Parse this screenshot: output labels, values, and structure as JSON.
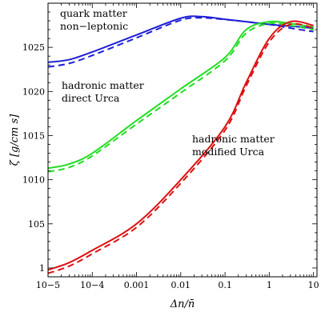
{
  "chart_data": {
    "type": "line",
    "title": "",
    "xlabel": "Δn/n̄",
    "ylabel": "ζ [g/cm s]",
    "xscale": "log",
    "yscale": "log",
    "xlim": [
      1e-05,
      12
    ],
    "ylim": [
      0.1,
      1e+30
    ],
    "grid": false,
    "x_tick_labels": [
      "10−5",
      "10−4",
      "0.001",
      "0.01",
      "0.1",
      "1",
      "10"
    ],
    "y_tick_labels": [
      "1",
      "105",
      "1010",
      "1015",
      "1020",
      "1025"
    ],
    "annotations": [
      {
        "text": [
          "quark matter",
          "non−leptonic"
        ],
        "color": "#000000"
      },
      {
        "text": [
          "hadronic matter",
          "direct Urca"
        ],
        "color": "#000000"
      },
      {
        "text": [
          "hadronic matter",
          "modified Urca"
        ],
        "color": "#000000"
      }
    ],
    "series": [
      {
        "style": "solid",
        "color": "#1f1fd6",
        "x": [
          1e-05,
          3e-05,
          0.0001,
          0.001,
          0.01,
          0.03,
          0.1,
          0.3,
          1,
          3,
          10
        ],
        "y": [
          2e+23,
          4e+23,
          3e+24,
          2.5e+26,
          2e+28,
          3e+28,
          1.5e+28,
          8e+27,
          4e+27,
          2.5e+27,
          1.5e+27
        ]
      },
      {
        "style": "dashed",
        "color": "#1f1fd6",
        "x": [
          1e-05,
          3e-05,
          0.0001,
          0.001,
          0.01,
          0.03,
          0.1,
          0.3,
          1,
          3,
          10
        ],
        "y": [
          6e+22,
          1.5e+23,
          1.2e+24,
          1.2e+26,
          1.2e+28,
          2.2e+28,
          1.4e+28,
          8e+27,
          4e+27,
          1.5e+27,
          6e+26
        ]
      },
      {
        "style": "solid",
        "color": "#22dd22",
        "x": [
          1e-05,
          3e-05,
          0.0001,
          0.001,
          0.01,
          0.1,
          0.3,
          1,
          3,
          10
        ],
        "y": [
          200000000000.0,
          600000000000.0,
          10000000000000.0,
          5e+16,
          2e+20,
          7e+23,
          1e+27,
          8e+27,
          5e+27,
          2e+27
        ]
      },
      {
        "style": "dashed",
        "color": "#22dd22",
        "x": [
          1e-05,
          3e-05,
          0.0001,
          0.001,
          0.01,
          0.1,
          0.3,
          1,
          3,
          10
        ],
        "y": [
          80000000000.0,
          250000000000.0,
          5000000000000.0,
          2e+16,
          7e+19,
          3e+23,
          4e+26,
          5e+27,
          3e+27,
          1e+27
        ]
      },
      {
        "style": "solid",
        "color": "#dd1111",
        "x": [
          1e-05,
          3e-05,
          0.0001,
          0.001,
          0.01,
          0.1,
          0.3,
          1,
          3,
          10
        ],
        "y": [
          0.6,
          4,
          100,
          100000.0,
          10000000000.0,
          1e+16,
          1e+21,
          1e+26,
          8e+27,
          3e+27
        ]
      },
      {
        "style": "dashed",
        "color": "#dd1111",
        "x": [
          1e-05,
          3e-05,
          0.0001,
          0.001,
          0.01,
          0.1,
          0.3,
          1,
          3,
          10
        ],
        "y": [
          0.25,
          1.6,
          40,
          40000.0,
          4000000000.0,
          4000000000000000.0,
          4e+20,
          4e+25,
          4e+27,
          1.5e+27
        ]
      }
    ]
  }
}
